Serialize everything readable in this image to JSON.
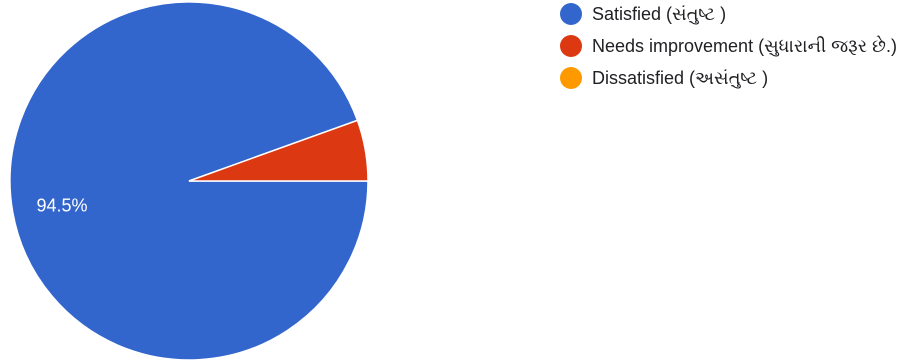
{
  "chart_data": {
    "type": "pie",
    "categories": [
      "Satisfied (સંતુષ્ટ )",
      "Needs improvement (સુધારાની જરૂર છે.)",
      "Dissatisfied (અસંતુષ્ટ )"
    ],
    "values": [
      94.5,
      5.5,
      0
    ],
    "colors": [
      "#3366cc",
      "#dc3912",
      "#ff9900"
    ],
    "slice_labels": [
      "94.5%",
      "",
      ""
    ],
    "legend_placement": "right"
  }
}
